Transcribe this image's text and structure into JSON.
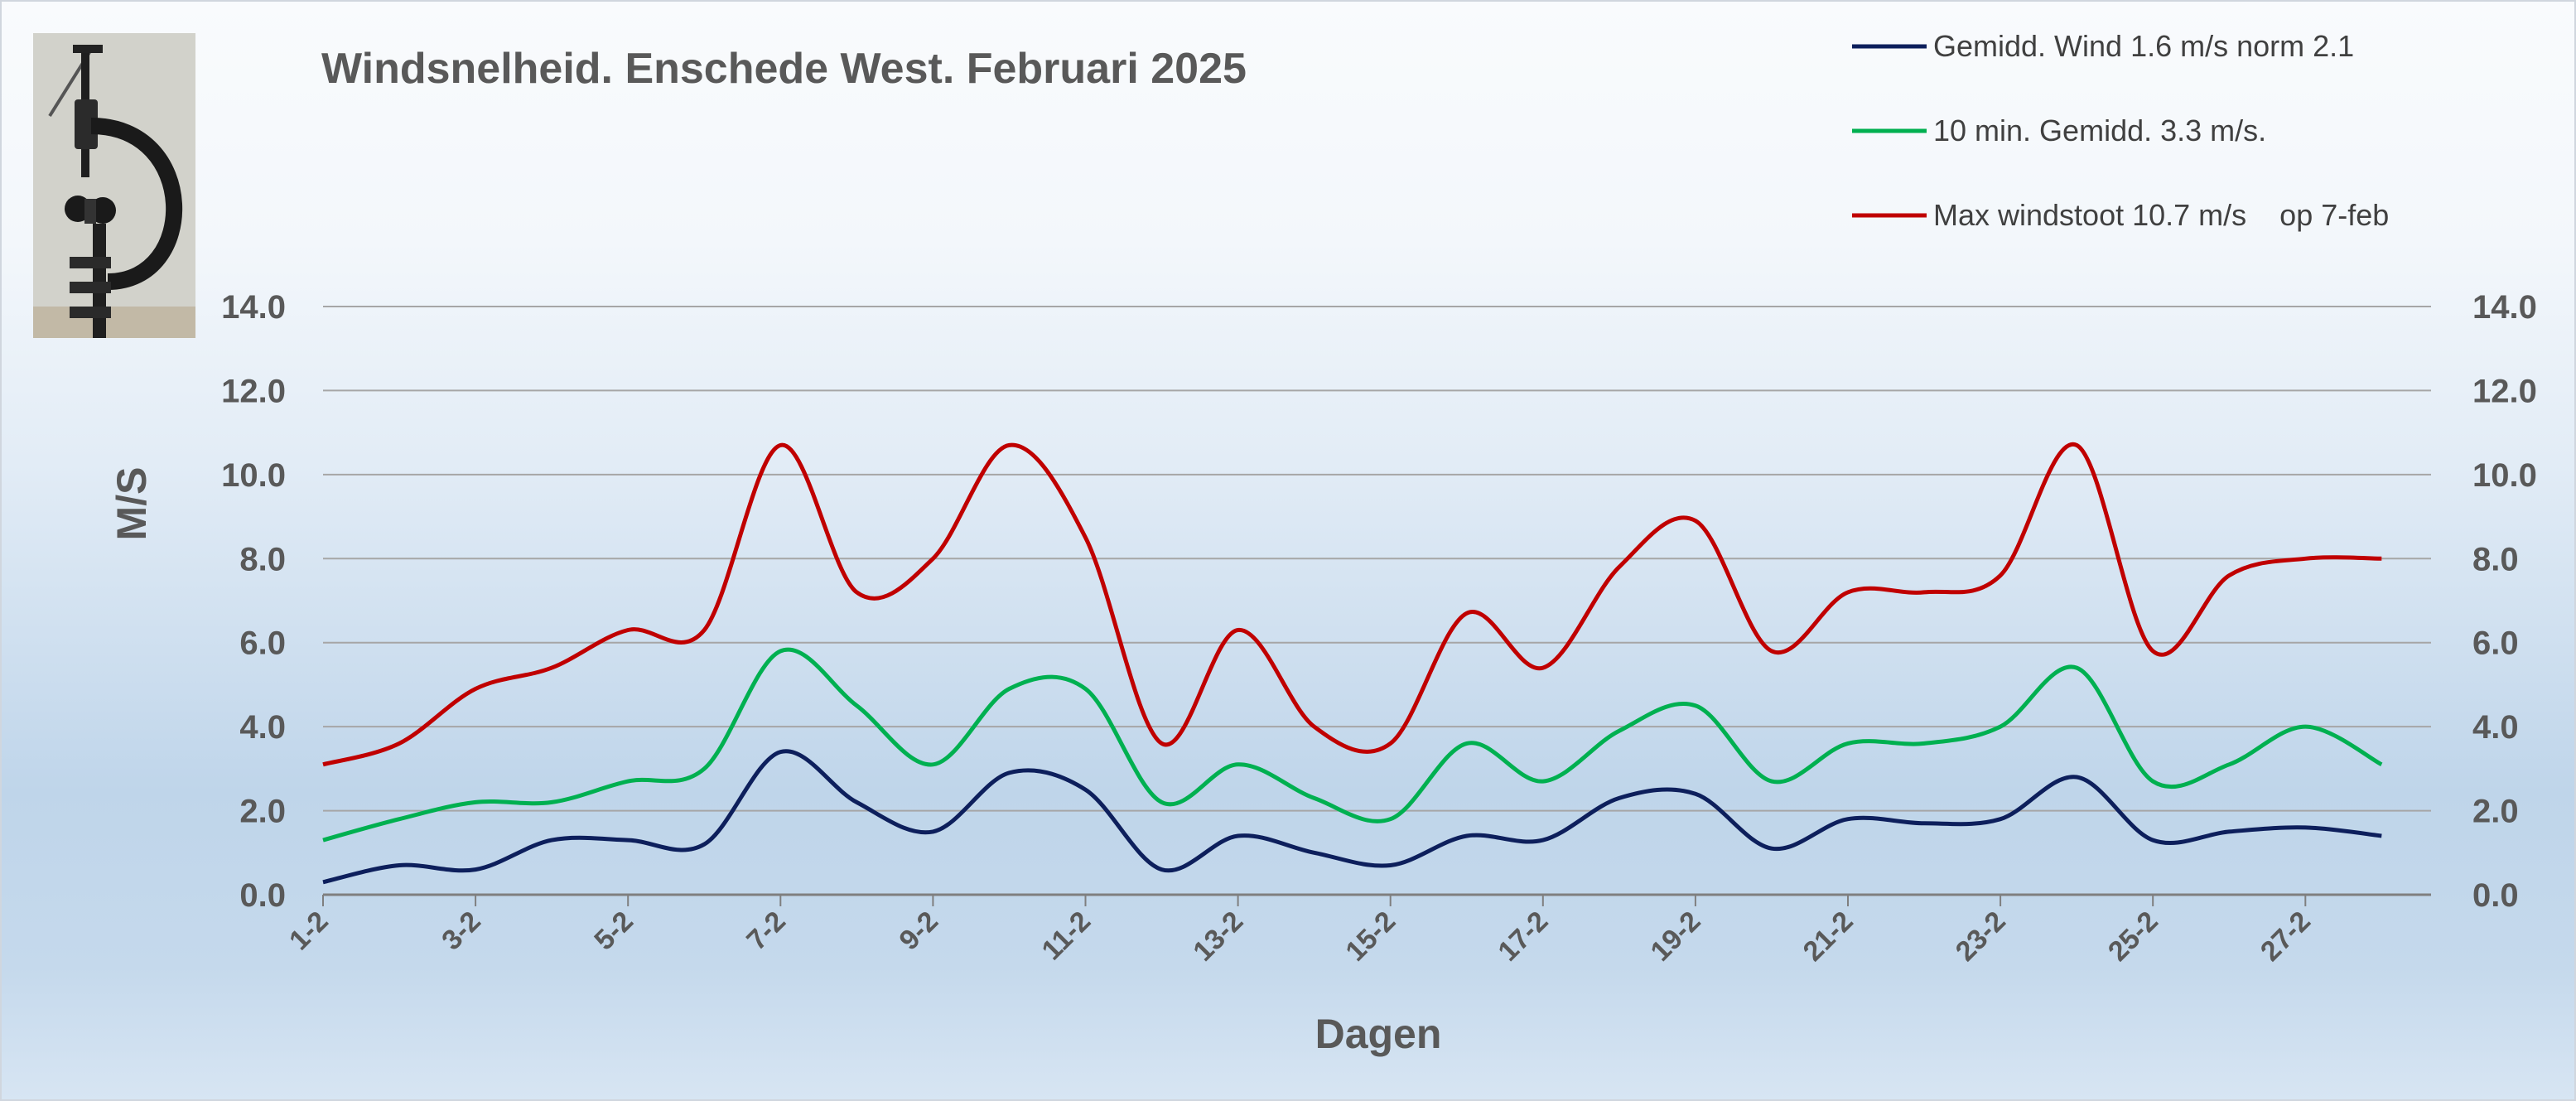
{
  "chart_data": {
    "type": "line",
    "title": "Windsnelheid. Enschede West. Februari 2025",
    "ylabel": "M/S",
    "xlabel": "Dagen",
    "ylim": [
      0,
      14
    ],
    "y_ticks": [
      "0.0",
      "2.0",
      "4.0",
      "6.0",
      "8.0",
      "10.0",
      "12.0",
      "14.0"
    ],
    "secondary_y_axis": true,
    "grid": "horizontal",
    "legend_position": "top-right",
    "x": [
      "1-2",
      "2-2",
      "3-2",
      "4-2",
      "5-2",
      "6-2",
      "7-2",
      "8-2",
      "9-2",
      "10-2",
      "11-2",
      "12-2",
      "13-2",
      "14-2",
      "15-2",
      "16-2",
      "17-2",
      "18-2",
      "19-2",
      "20-2",
      "21-2",
      "22-2",
      "23-2",
      "24-2",
      "25-2",
      "26-2",
      "27-2",
      "28-2"
    ],
    "x_tick_labels": [
      "1-2",
      "3-2",
      "5-2",
      "7-2",
      "9-2",
      "11-2",
      "13-2",
      "15-2",
      "17-2",
      "19-2",
      "21-2",
      "23-2",
      "25-2",
      "27-2"
    ],
    "series": [
      {
        "name": "Gemidd. Wind 1.6 m/s norm 2.1",
        "color": "#0d1f5c",
        "values": [
          0.3,
          0.7,
          0.6,
          1.3,
          1.3,
          1.2,
          3.4,
          2.2,
          1.5,
          2.9,
          2.5,
          0.6,
          1.4,
          1.0,
          0.7,
          1.4,
          1.3,
          2.3,
          2.4,
          1.1,
          1.8,
          1.7,
          1.8,
          2.8,
          1.3,
          1.5,
          1.6,
          1.4
        ]
      },
      {
        "name": "10 min. Gemidd. 3.3 m/s.",
        "color": "#00b050",
        "values": [
          1.3,
          1.8,
          2.2,
          2.2,
          2.7,
          3.0,
          5.8,
          4.5,
          3.1,
          4.9,
          4.9,
          2.2,
          3.1,
          2.3,
          1.8,
          3.6,
          2.7,
          3.9,
          4.5,
          2.7,
          3.6,
          3.6,
          4.0,
          5.4,
          2.7,
          3.1,
          4.0,
          3.1
        ]
      },
      {
        "name": "Max windstoot 10.7 m/s    op 7-feb",
        "color": "#c00000",
        "values": [
          3.1,
          3.6,
          4.9,
          5.4,
          6.3,
          6.3,
          10.7,
          7.2,
          8.0,
          10.7,
          8.5,
          3.6,
          6.3,
          4.0,
          3.6,
          6.7,
          5.4,
          7.8,
          8.9,
          5.8,
          7.2,
          7.2,
          7.6,
          10.7,
          5.8,
          7.6,
          8.0,
          8.0
        ]
      }
    ]
  }
}
